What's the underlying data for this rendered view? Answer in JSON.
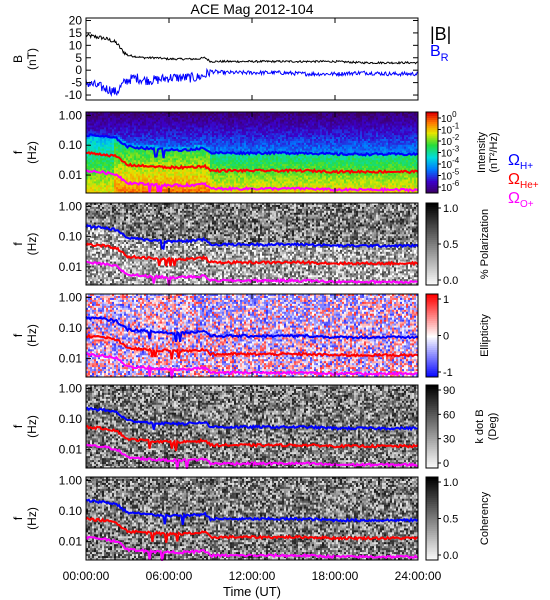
{
  "chart_data": {
    "type": "line",
    "title": "ACE Mag 2012-104",
    "xlabel": "Time (UT)",
    "x_ticks": [
      "00:00:00",
      "06:00:00",
      "12:00:00",
      "18:00:00",
      "24:00:00"
    ],
    "x_range_hours": [
      0,
      24
    ],
    "panels": [
      {
        "id": "b",
        "kind": "line",
        "ylabel_1": "B",
        "ylabel_2": "(nT)",
        "ylim": [
          -12,
          21
        ],
        "y_ticks": [
          "20",
          "15",
          "10",
          "5",
          "0",
          "-5",
          "-10"
        ],
        "y_tick_values": [
          20,
          15,
          10,
          5,
          0,
          -5,
          -10
        ],
        "legend": {
          "series_1": "|B|",
          "series_2_main": "B",
          "series_2_sub": "R"
        },
        "series": [
          {
            "key": "total",
            "color": "#000000",
            "x": [
              0,
              0.6,
              1.2,
              1.8,
              2.2,
              2.6,
              3.0,
              3.6,
              4.2,
              5.0,
              6.0,
              7.0,
              8.0,
              8.6,
              9.0,
              10,
              12,
              14,
              16,
              18,
              20,
              22,
              24
            ],
            "y": [
              14,
              13.5,
              13,
              12,
              11,
              8,
              6,
              5.5,
              5,
              5,
              4.5,
              4.5,
              4.5,
              5,
              3.5,
              3.5,
              3.5,
              3.5,
              3.5,
              3.5,
              3,
              3,
              3
            ]
          },
          {
            "key": "radial",
            "color": "#0000ff",
            "x": [
              0,
              0.6,
              1.2,
              1.8,
              2.2,
              2.6,
              3.0,
              3.6,
              4.2,
              5.0,
              6.0,
              7.0,
              8.0,
              8.6,
              9.0,
              10,
              12,
              14,
              16,
              18,
              20,
              22,
              24
            ],
            "y": [
              -5,
              -6,
              -7,
              -8,
              -9,
              -6,
              -4,
              -3,
              -4,
              -4,
              -3,
              -3,
              -3,
              -2,
              -0.5,
              -1,
              -1,
              -1,
              -1.5,
              -1.5,
              -1,
              -1.5,
              -1.5
            ]
          }
        ]
      },
      {
        "id": "intensity",
        "kind": "spectrogram",
        "colormap": "rainbow",
        "ylabel_1": "f",
        "ylabel_2": "(Hz)",
        "y_ticks": [
          "1.00",
          "0.10",
          "0.01"
        ],
        "colorbar_labels": [
          "10",
          "10",
          "10",
          "10",
          "10",
          "10",
          "10"
        ],
        "colorbar_exponents": [
          "0",
          "-1",
          "-2",
          "-3",
          "-4",
          "-5",
          "-6"
        ],
        "colorbar_title_1": "Intensity",
        "colorbar_title_2": "(nT²/Hz)",
        "legend": [
          {
            "main": "Ω",
            "sub": "H+",
            "color": "#0000ff"
          },
          {
            "main": "Ω",
            "sub": "He+",
            "color": "#ff0000"
          },
          {
            "main": "Ω",
            "sub": "O+",
            "color": "#ff00ff"
          }
        ]
      },
      {
        "id": "polarization",
        "kind": "spectrogram",
        "colormap": "gray",
        "ylabel_1": "f",
        "ylabel_2": "(Hz)",
        "y_ticks": [
          "1.00",
          "0.10",
          "0.01"
        ],
        "colorbar_ticks": [
          "1.0",
          "0.5",
          "0.0"
        ],
        "colorbar_title": "% Polarization"
      },
      {
        "id": "ellipticity",
        "kind": "spectrogram",
        "colormap": "bwr",
        "ylabel_1": "f",
        "ylabel_2": "(Hz)",
        "y_ticks": [
          "1.00",
          "0.10",
          "0.01"
        ],
        "colorbar_ticks": [
          "1",
          "0",
          "-1"
        ],
        "colorbar_title": "Ellipticity"
      },
      {
        "id": "kdotb",
        "kind": "spectrogram",
        "colormap": "gray",
        "ylabel_1": "f",
        "ylabel_2": "(Hz)",
        "y_ticks": [
          "1.00",
          "0.10",
          "0.01"
        ],
        "colorbar_ticks": [
          "90",
          "60",
          "30",
          "0"
        ],
        "colorbar_title_1": "k dot B",
        "colorbar_title_2": "(Deg)"
      },
      {
        "id": "coherency",
        "kind": "spectrogram",
        "colormap": "gray",
        "ylabel_1": "f",
        "ylabel_2": "(Hz)",
        "y_ticks": [
          "1.00",
          "0.10",
          "0.01"
        ],
        "colorbar_ticks": [
          "1.0",
          "0.5",
          "0.0"
        ],
        "colorbar_title": "Coherency"
      }
    ],
    "gyrofrequencies": {
      "x_hours": [
        0,
        0.6,
        1.2,
        1.8,
        2.2,
        2.6,
        3.0,
        3.6,
        4.2,
        5.0,
        6.0,
        7.0,
        8.0,
        8.6,
        9.0,
        10,
        12,
        14,
        16,
        18,
        20,
        22,
        24
      ],
      "H+": [
        0.22,
        0.21,
        0.2,
        0.18,
        0.17,
        0.12,
        0.09,
        0.085,
        0.08,
        0.075,
        0.07,
        0.07,
        0.075,
        0.08,
        0.055,
        0.055,
        0.055,
        0.055,
        0.055,
        0.05,
        0.05,
        0.05,
        0.05
      ],
      "He+": [
        0.055,
        0.052,
        0.05,
        0.045,
        0.042,
        0.03,
        0.022,
        0.021,
        0.02,
        0.019,
        0.018,
        0.018,
        0.019,
        0.02,
        0.014,
        0.014,
        0.014,
        0.014,
        0.014,
        0.013,
        0.013,
        0.013,
        0.013
      ],
      "O+": [
        0.014,
        0.013,
        0.0125,
        0.011,
        0.0105,
        0.0075,
        0.0055,
        0.0053,
        0.005,
        0.0047,
        0.0045,
        0.0045,
        0.0047,
        0.005,
        0.0035,
        0.0035,
        0.0035,
        0.0035,
        0.0035,
        0.0032,
        0.0032,
        0.0032,
        0.0032
      ]
    },
    "gyro_colors": {
      "H+": "#0000ff",
      "He+": "#ff0000",
      "O+": "#ff00ff"
    }
  }
}
